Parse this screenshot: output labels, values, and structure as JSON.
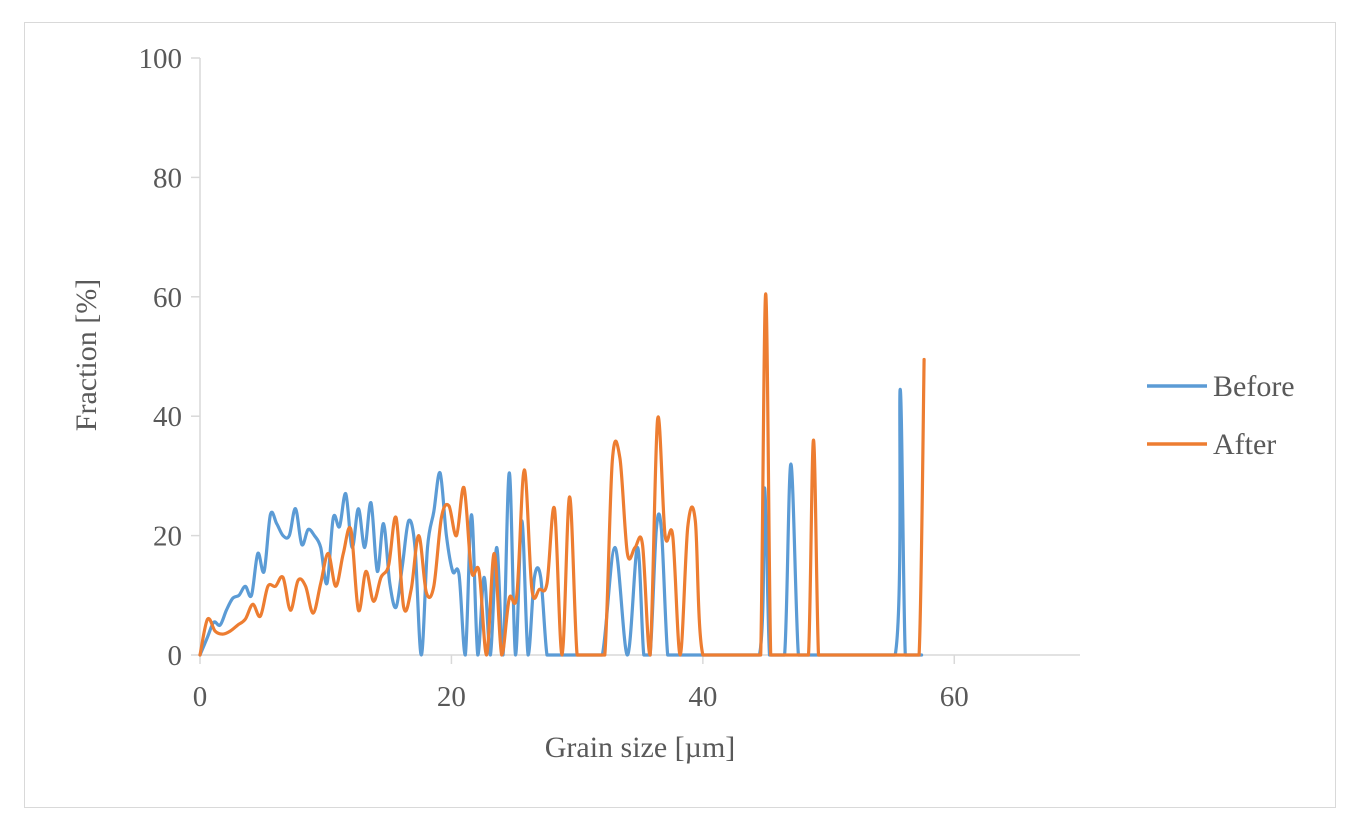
{
  "chart_data": {
    "type": "line",
    "title": "",
    "xlabel": "Grain size [µm]",
    "ylabel": "Fraction [%]",
    "xlim": [
      0,
      70
    ],
    "ylim": [
      0,
      100
    ],
    "xticks": [
      0,
      20,
      40,
      60
    ],
    "yticks": [
      0,
      20,
      40,
      60,
      80,
      100
    ],
    "grid": false,
    "legend_position": "right",
    "series": [
      {
        "name": "Before",
        "color": "#5b9bd5",
        "x": [
          0,
          0.6,
          1.1,
          1.6,
          2.1,
          2.6,
          3.1,
          3.6,
          4.1,
          4.6,
          5.1,
          5.6,
          6.1,
          6.6,
          7.1,
          7.6,
          8.1,
          8.6,
          9.1,
          9.6,
          10.1,
          10.6,
          11.1,
          11.6,
          12.1,
          12.6,
          13.1,
          13.6,
          14.1,
          14.6,
          15.1,
          15.6,
          16.1,
          16.6,
          17.1,
          17.6,
          18.1,
          18.6,
          19.1,
          19.6,
          20.1,
          20.6,
          21.1,
          21.6,
          22.1,
          22.6,
          23.1,
          23.6,
          24.1,
          24.6,
          25.1,
          25.6,
          26.1,
          26.6,
          27.1,
          27.6,
          28.1,
          28.6,
          29.1,
          29.6,
          30.1,
          31,
          32,
          33,
          34,
          34.8,
          35.3,
          35.8,
          36.3,
          36.7,
          37.2,
          37.7,
          38.2,
          38.7,
          39.2,
          39.7,
          42,
          44.5,
          44.9,
          45.3,
          45.7,
          46.5,
          47,
          47.6,
          48.2,
          49,
          52,
          55.3,
          55.7,
          56.1,
          56.6,
          57,
          57.4
        ],
        "values": [
          0,
          3,
          5.5,
          5,
          7.5,
          9.5,
          10,
          11.5,
          10,
          17,
          14,
          23.5,
          22,
          20,
          20,
          24.5,
          18.5,
          21,
          20,
          18,
          12,
          23,
          21.5,
          27,
          18,
          24.5,
          18,
          25.5,
          14,
          22,
          12,
          8,
          15,
          22.5,
          18,
          0,
          18,
          24,
          30.5,
          20,
          14,
          13.5,
          0,
          23.5,
          0,
          13,
          0,
          18,
          0,
          30.5,
          0,
          22.5,
          0,
          13,
          13,
          0,
          0,
          0,
          0,
          0,
          0,
          0,
          0,
          18,
          0,
          18,
          0,
          0,
          21,
          21,
          0,
          0,
          0,
          0,
          0,
          0,
          0,
          0,
          28,
          0,
          0,
          0,
          32,
          0,
          0,
          0,
          0,
          0,
          44.5,
          0,
          0,
          0,
          0
        ]
      },
      {
        "name": "After",
        "color": "#ed7d31",
        "x": [
          0,
          0.6,
          1.2,
          1.8,
          2.4,
          3,
          3.6,
          4.2,
          4.8,
          5.4,
          6,
          6.6,
          7.2,
          7.8,
          8.4,
          9,
          9.6,
          10.2,
          10.8,
          11.4,
          12,
          12.6,
          13.2,
          13.8,
          14.4,
          15,
          15.6,
          16.2,
          16.8,
          17.4,
          18,
          18.6,
          19.2,
          19.8,
          20.4,
          21,
          21.6,
          22.2,
          22.8,
          23.4,
          24,
          24.6,
          25.2,
          25.8,
          26.4,
          27,
          27.6,
          28.2,
          28.8,
          29.4,
          30,
          30.6,
          31.5,
          32.2,
          32.8,
          33.4,
          34,
          34.6,
          35.2,
          35.8,
          36.4,
          37,
          37.6,
          38.2,
          38.8,
          39.4,
          40,
          42,
          44.2,
          44.6,
          45,
          45.4,
          45.8,
          46.8,
          47.8,
          48.4,
          48.8,
          49.2,
          49.6,
          52,
          55,
          56.5,
          57.2,
          57.6
        ],
        "values": [
          0,
          6,
          4,
          3.5,
          4,
          5,
          6,
          8.5,
          6.5,
          11.5,
          11.5,
          13,
          7.5,
          12.5,
          11.5,
          7,
          12,
          17,
          11.5,
          17,
          21,
          7.5,
          14,
          9,
          13,
          15,
          23,
          8,
          11,
          20,
          10.5,
          11.5,
          23,
          25,
          20,
          28,
          14,
          14,
          0,
          17,
          0,
          9.5,
          10,
          31,
          11,
          11,
          12,
          24.5,
          0,
          26.5,
          0,
          0,
          0,
          0,
          32.5,
          33,
          17,
          18,
          18.5,
          0,
          39.5,
          20,
          20,
          0,
          21.5,
          22.5,
          0,
          0,
          0,
          0,
          60.5,
          0,
          0,
          0,
          0,
          0,
          36,
          0,
          0,
          0,
          0,
          0,
          0,
          49.5
        ]
      }
    ]
  }
}
